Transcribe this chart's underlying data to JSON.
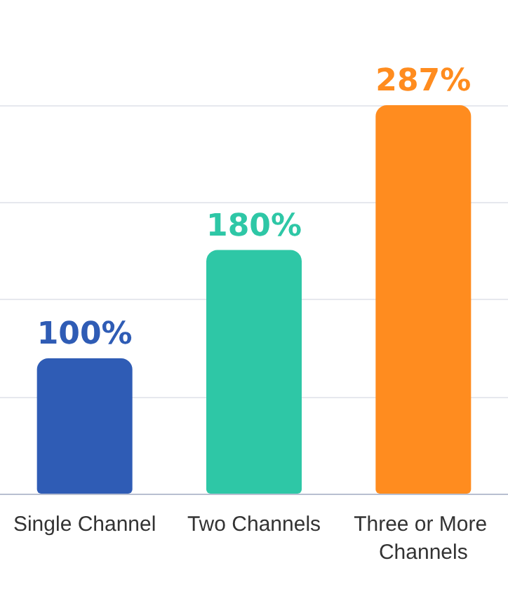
{
  "chart_data": {
    "type": "bar",
    "categories": [
      "Single Channel",
      "Two Channels",
      "Three or More Channels"
    ],
    "values": [
      100,
      180,
      287
    ],
    "colors": [
      "#2f5cb5",
      "#2ec7a6",
      "#ff8c1f"
    ],
    "value_labels": [
      "100%",
      "180%",
      "287%"
    ],
    "relative": false,
    "ylim": [
      0,
      287
    ],
    "yticks": [
      {
        "value": 0,
        "label": null
      },
      {
        "value": 71.75,
        "label": null
      },
      {
        "value": 143.5,
        "label": null
      },
      {
        "value": 215.25,
        "label": null
      },
      {
        "value": 287,
        "label": null
      }
    ],
    "grid": "y",
    "tick_labels": "x"
  }
}
